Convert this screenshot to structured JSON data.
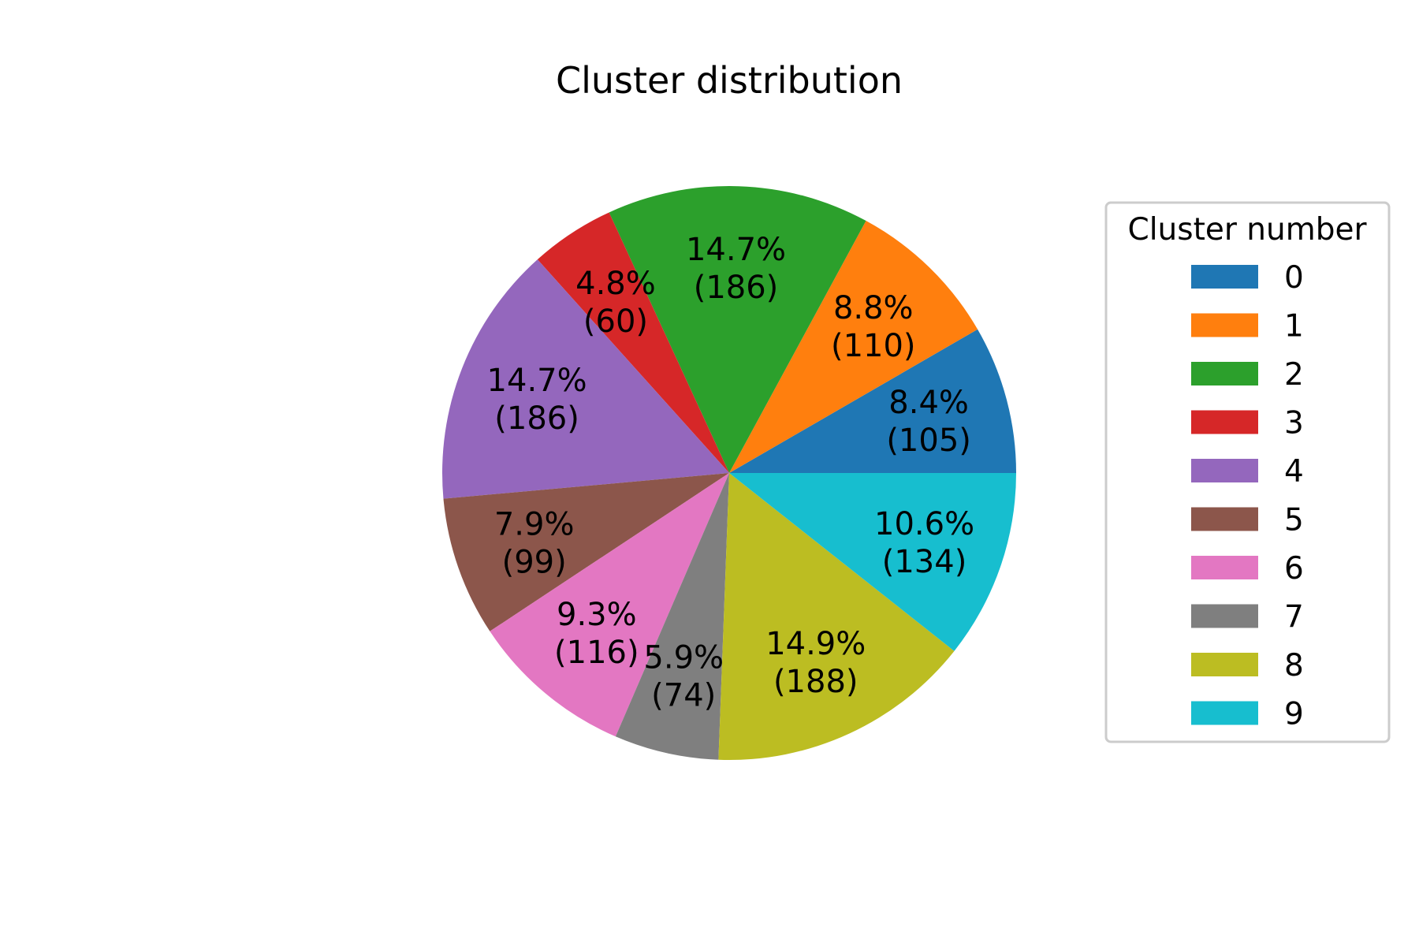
{
  "chart_data": {
    "type": "pie",
    "title": "Cluster distribution",
    "legend": {
      "title": "Cluster number",
      "placement": "right"
    },
    "start_angle_deg": 0,
    "direction": "counterclockwise",
    "slices": [
      {
        "label": "0",
        "value": 105,
        "percent_label": "8.4%",
        "count_label": "(105)",
        "color": "#1f77b4"
      },
      {
        "label": "1",
        "value": 110,
        "percent_label": "8.8%",
        "count_label": "(110)",
        "color": "#ff7f0e"
      },
      {
        "label": "2",
        "value": 186,
        "percent_label": "14.7%",
        "count_label": "(186)",
        "color": "#2ca02c"
      },
      {
        "label": "3",
        "value": 60,
        "percent_label": "4.8%",
        "count_label": "(60)",
        "color": "#d62728"
      },
      {
        "label": "4",
        "value": 186,
        "percent_label": "14.7%",
        "count_label": "(186)",
        "color": "#9467bd"
      },
      {
        "label": "5",
        "value": 99,
        "percent_label": "7.9%",
        "count_label": "(99)",
        "color": "#8c564b"
      },
      {
        "label": "6",
        "value": 116,
        "percent_label": "9.3%",
        "count_label": "(116)",
        "color": "#e377c2"
      },
      {
        "label": "7",
        "value": 74,
        "percent_label": "5.9%",
        "count_label": "(74)",
        "color": "#7f7f7f"
      },
      {
        "label": "8",
        "value": 188,
        "percent_label": "14.9%",
        "count_label": "(188)",
        "color": "#bcbd22"
      },
      {
        "label": "9",
        "value": 134,
        "percent_label": "10.6%",
        "count_label": "(134)",
        "color": "#17becf"
      }
    ]
  }
}
